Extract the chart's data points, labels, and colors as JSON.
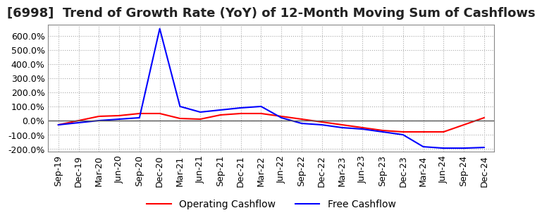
{
  "title": "[6998]  Trend of Growth Rate (YoY) of 12-Month Moving Sum of Cashflows",
  "ylim": [
    -220,
    680
  ],
  "yticks": [
    -200,
    -100,
    0,
    100,
    200,
    300,
    400,
    500,
    600
  ],
  "background_color": "#ffffff",
  "grid_color": "#aaaaaa",
  "x_labels": [
    "Sep-19",
    "Dec-19",
    "Mar-20",
    "Jun-20",
    "Sep-20",
    "Dec-20",
    "Mar-21",
    "Jun-21",
    "Sep-21",
    "Dec-21",
    "Mar-22",
    "Jun-22",
    "Sep-22",
    "Dec-22",
    "Mar-23",
    "Jun-23",
    "Sep-23",
    "Dec-23",
    "Mar-24",
    "Jun-24",
    "Sep-24",
    "Dec-24"
  ],
  "operating_cashflow": [
    -30,
    0,
    30,
    35,
    50,
    50,
    15,
    10,
    40,
    50,
    50,
    30,
    10,
    -10,
    -30,
    -50,
    -70,
    -80,
    -80,
    -80,
    -30,
    20
  ],
  "free_cashflow": [
    -30,
    -15,
    0,
    10,
    20,
    650,
    100,
    60,
    75,
    90,
    100,
    20,
    -20,
    -30,
    -50,
    -60,
    -80,
    -100,
    -185,
    -195,
    -195,
    -190
  ],
  "op_color": "#ff0000",
  "free_color": "#0000ff",
  "legend_op": "Operating Cashflow",
  "legend_free": "Free Cashflow",
  "title_fontsize": 13,
  "tick_fontsize": 9,
  "legend_fontsize": 10
}
